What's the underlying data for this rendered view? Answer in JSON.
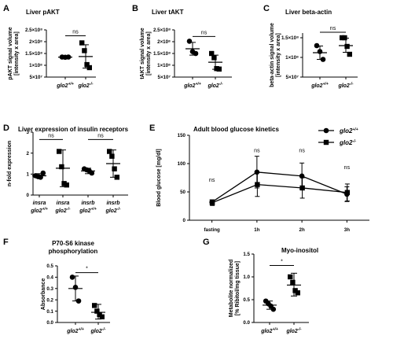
{
  "chart_data": [
    {
      "id": "A",
      "type": "scatter",
      "panel_label": "A",
      "title": "Liver pAKT",
      "ylabel_lines": [
        "pAKT signal volume",
        "[intensity x area]"
      ],
      "yticks": [
        "5×10⁷",
        "1×10⁸",
        "1.5×10⁸",
        "2×10⁸",
        "2.5×10⁸"
      ],
      "ytick_values": [
        50000000,
        100000000,
        150000000,
        200000000,
        250000000
      ],
      "ylim": [
        50000000,
        250000000
      ],
      "xlim": [
        0,
        3
      ],
      "groups": [
        {
          "label": "glo2",
          "sup": "+/+",
          "x": 1,
          "marker": "circle",
          "points": [
            135000000,
            134000000,
            135000000
          ],
          "mean": 134700000,
          "sd_lo": 133000000,
          "sd_hi": 136500000
        },
        {
          "label": "glo2",
          "sup": "-/-",
          "x": 2,
          "marker": "square",
          "points": [
            195000000,
            162000000,
            103000000,
            90000000
          ],
          "mean": 137000000,
          "sd_lo": 88000000,
          "sd_hi": 187000000
        }
      ],
      "brackets": [
        {
          "x1": 1,
          "x2": 2,
          "y": 225000000,
          "text": "ns"
        }
      ]
    },
    {
      "id": "B",
      "type": "scatter",
      "panel_label": "B",
      "title": "Liver tAKT",
      "ylabel_lines": [
        "tAKT signal volume",
        "[intensity x area]"
      ],
      "yticks": [
        "5×10⁷",
        "1×10⁸",
        "1.5×10⁸",
        "2×10⁸",
        "2.5×10⁸"
      ],
      "ytick_values": [
        50000000,
        100000000,
        150000000,
        200000000,
        250000000
      ],
      "ylim": [
        50000000,
        250000000
      ],
      "xlim": [
        0,
        3
      ],
      "groups": [
        {
          "label": "glo2",
          "sup": "+/+",
          "x": 1,
          "marker": "circle",
          "points": [
            202000000,
            158000000,
            150000000
          ],
          "mean": 170000000,
          "sd_lo": 143000000,
          "sd_hi": 197000000
        },
        {
          "label": "glo2",
          "sup": "-/-",
          "x": 2,
          "marker": "square",
          "points": [
            150000000,
            132000000,
            86000000,
            84000000
          ],
          "mean": 113000000,
          "sd_lo": 83000000,
          "sd_hi": 143000000
        }
      ],
      "brackets": [
        {
          "x1": 1,
          "x2": 2,
          "y": 222000000,
          "text": "ns"
        }
      ]
    },
    {
      "id": "C",
      "type": "scatter",
      "panel_label": "C",
      "title": "Liver beta-actin",
      "ylabel_lines": [
        "beta-actin signal volume",
        "[intensity x area]"
      ],
      "yticks": [
        "5×10⁷",
        "1×10⁸",
        "1.5×10⁸"
      ],
      "ytick_values": [
        50000000,
        100000000,
        150000000
      ],
      "ylim": [
        50000000,
        162000000
      ],
      "xlim": [
        0,
        3
      ],
      "groups": [
        {
          "label": "glo2",
          "sup": "+/+",
          "x": 1,
          "marker": "circle",
          "points": [
            130000000,
            115000000,
            95000000
          ],
          "mean": 112000000,
          "sd_lo": 95000000,
          "sd_hi": 129000000
        },
        {
          "label": "glo2",
          "sup": "-/-",
          "x": 2,
          "marker": "square",
          "points": [
            150000000,
            150000000,
            128000000,
            108000000
          ],
          "mean": 130000000,
          "sd_lo": 113000000,
          "sd_hi": 149000000
        }
      ],
      "brackets": [
        {
          "x1": 1,
          "x2": 2,
          "y": 164000000,
          "text": "ns"
        }
      ]
    },
    {
      "id": "D",
      "type": "scatter",
      "panel_label": "D",
      "title": "Liver expression of insulin receptors",
      "ylabel_lines": [
        "n-fold expression"
      ],
      "yticks": [
        "0",
        "1",
        "2",
        "3"
      ],
      "ytick_values": [
        0,
        1,
        2,
        3
      ],
      "ylim": [
        0,
        3
      ],
      "xlim": [
        0,
        5
      ],
      "groups": [
        {
          "label": "insra glo2",
          "sup": "+/+",
          "x": 1,
          "marker": "circle",
          "points": [
            0.92,
            0.88,
            0.85,
            1.05
          ],
          "mean": 0.92,
          "sd_lo": 0.82,
          "sd_hi": 1.02
        },
        {
          "label": "insra glo2",
          "sup": "-/-",
          "x": 2,
          "marker": "square",
          "points": [
            2.08,
            1.35,
            0.55,
            0.48
          ],
          "mean": 1.28,
          "sd_lo": 0.4,
          "sd_hi": 2.15
        },
        {
          "label": "insrb glo2",
          "sup": "+/+",
          "x": 3,
          "marker": "circle",
          "points": [
            1.25,
            1.2,
            1.15,
            1.05
          ],
          "mean": 1.15,
          "sd_lo": 1.02,
          "sd_hi": 1.28
        },
        {
          "label": "insrb glo2",
          "sup": "-/-",
          "x": 4,
          "marker": "square",
          "points": [
            2.08,
            1.85,
            1.25,
            0.85
          ],
          "mean": 1.5,
          "sd_lo": 0.85,
          "sd_hi": 2.15
        }
      ],
      "brackets": [
        {
          "x1": 1,
          "x2": 2,
          "y": 2.65,
          "text": "ns"
        },
        {
          "x1": 3,
          "x2": 4,
          "y": 2.65,
          "text": "ns"
        }
      ]
    },
    {
      "id": "E",
      "type": "line",
      "panel_label": "E",
      "title": "Adult blood glucose kinetics",
      "ylabel_lines": [
        "Blood glucose [mg/dl]"
      ],
      "categories": [
        "fasting",
        "1h",
        "2h",
        "3h"
      ],
      "yticks": [
        "0",
        "50",
        "100",
        "150"
      ],
      "ytick_values": [
        0,
        50,
        100,
        150
      ],
      "ylim": [
        0,
        150
      ],
      "xlim": [
        -0.5,
        3.5
      ],
      "series": [
        {
          "name": "glo2",
          "sup": "+/+",
          "marker": "circle",
          "values": [
            32,
            85,
            78,
            46
          ],
          "err": [
            4,
            28,
            23,
            13
          ]
        },
        {
          "name": "glo2",
          "sup": "-/-",
          "marker": "square",
          "values": [
            31,
            63,
            57,
            49
          ],
          "err": [
            5,
            21,
            18,
            15
          ]
        }
      ],
      "annotations": [
        "ns",
        "ns",
        "ns",
        "ns"
      ],
      "annotation_y": [
        68,
        120,
        120,
        90
      ],
      "legend_position": "top-right"
    },
    {
      "id": "F",
      "type": "scatter",
      "panel_label": "F",
      "title_lines": [
        "P70-S6 kinase",
        "phosphorylation"
      ],
      "ylabel_lines": [
        "Absorbance"
      ],
      "yticks": [
        "0.0",
        "0.1",
        "0.2",
        "0.3",
        "0.4",
        "0.5"
      ],
      "ytick_values": [
        0,
        0.1,
        0.2,
        0.3,
        0.4,
        0.5
      ],
      "ylim": [
        0,
        0.5
      ],
      "xlim": [
        0,
        3
      ],
      "groups": [
        {
          "label": "glo2",
          "sup": "+/+",
          "x": 1,
          "marker": "circle",
          "points": [
            0.4,
            0.31,
            0.19
          ],
          "mean": 0.3,
          "sd_lo": 0.19,
          "sd_hi": 0.41
        },
        {
          "label": "glo2",
          "sup": "-/-",
          "x": 2,
          "marker": "square",
          "points": [
            0.15,
            0.1,
            0.07,
            0.05
          ],
          "mean": 0.09,
          "sd_lo": 0.03,
          "sd_hi": 0.16
        }
      ],
      "brackets": [
        {
          "x1": 1,
          "x2": 2,
          "y": 0.44,
          "text": "*"
        }
      ]
    },
    {
      "id": "G",
      "type": "scatter",
      "panel_label": "G",
      "title": "Myo-inositol",
      "ylabel_lines": [
        "Metabolite normalized",
        "[% Ribitol/mg tissue]"
      ],
      "yticks": [
        "0.0",
        "0.5",
        "1.0",
        "1.5"
      ],
      "ytick_values": [
        0,
        0.5,
        1.0,
        1.5
      ],
      "ylim": [
        0,
        1.5
      ],
      "xlim": [
        0,
        3
      ],
      "groups": [
        {
          "label": "glo2",
          "sup": "+/+",
          "x": 1,
          "marker": "circle",
          "points": [
            0.47,
            0.41,
            0.36,
            0.29
          ],
          "mean": 0.38,
          "sd_lo": 0.29,
          "sd_hi": 0.47
        },
        {
          "label": "glo2",
          "sup": "-/-",
          "x": 2,
          "marker": "square",
          "points": [
            1.0,
            0.88,
            0.7,
            0.65
          ],
          "mean": 0.82,
          "sd_lo": 0.58,
          "sd_hi": 1.08
        },
        {
          "label": "",
          "sup": "",
          "x": 0,
          "marker": "none",
          "points": []
        }
      ],
      "brackets": [
        {
          "x1": 1,
          "x2": 2,
          "y": 1.25,
          "text": "*"
        }
      ]
    }
  ]
}
